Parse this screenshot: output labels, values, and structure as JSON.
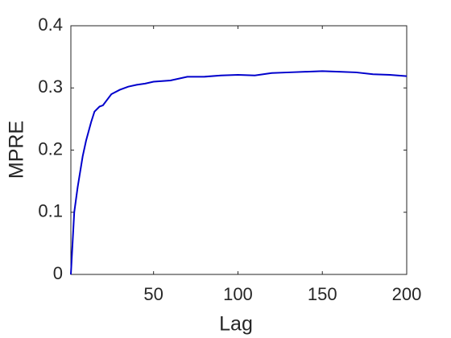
{
  "chart_data": {
    "type": "line",
    "xlabel": "Lag",
    "ylabel": "MPRE",
    "x": [
      1,
      2,
      3,
      5,
      8,
      10,
      13,
      15,
      18,
      20,
      25,
      30,
      35,
      40,
      45,
      50,
      60,
      70,
      80,
      90,
      100,
      110,
      120,
      130,
      140,
      150,
      160,
      170,
      180,
      190,
      200
    ],
    "values": [
      0,
      0.05,
      0.1,
      0.14,
      0.19,
      0.215,
      0.245,
      0.262,
      0.27,
      0.272,
      0.29,
      0.297,
      0.302,
      0.305,
      0.307,
      0.31,
      0.312,
      0.318,
      0.318,
      0.32,
      0.321,
      0.32,
      0.324,
      0.325,
      0.326,
      0.327,
      0.326,
      0.325,
      0.322,
      0.321,
      0.319
    ],
    "color": "#0000cc",
    "xlim": [
      1,
      200
    ],
    "xticks": [
      50,
      100,
      150,
      200
    ],
    "ylim": [
      0,
      0.4
    ],
    "yticks": [
      0,
      0.1,
      0.2,
      0.3,
      0.4
    ],
    "grid": false
  }
}
